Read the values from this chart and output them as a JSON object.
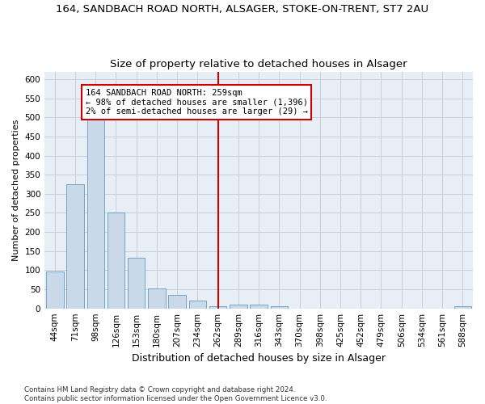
{
  "title": "164, SANDBACH ROAD NORTH, ALSAGER, STOKE-ON-TRENT, ST7 2AU",
  "subtitle": "Size of property relative to detached houses in Alsager",
  "xlabel": "Distribution of detached houses by size in Alsager",
  "ylabel": "Number of detached properties",
  "categories": [
    "44sqm",
    "71sqm",
    "98sqm",
    "126sqm",
    "153sqm",
    "180sqm",
    "207sqm",
    "234sqm",
    "262sqm",
    "289sqm",
    "316sqm",
    "343sqm",
    "370sqm",
    "398sqm",
    "425sqm",
    "452sqm",
    "479sqm",
    "506sqm",
    "534sqm",
    "561sqm",
    "588sqm"
  ],
  "values": [
    97,
    325,
    495,
    250,
    132,
    52,
    35,
    20,
    5,
    10,
    10,
    5,
    0,
    0,
    0,
    0,
    0,
    0,
    0,
    0,
    5
  ],
  "bar_color": "#c9d9ea",
  "bar_edge_color": "#6699bb",
  "highlight_index": 8,
  "highlight_color": "#cc0000",
  "annotation_line1": "164 SANDBACH ROAD NORTH: 259sqm",
  "annotation_line2": "← 98% of detached houses are smaller (1,396)",
  "annotation_line3": "2% of semi-detached houses are larger (29) →",
  "ylim": [
    0,
    620
  ],
  "yticks": [
    0,
    50,
    100,
    150,
    200,
    250,
    300,
    350,
    400,
    450,
    500,
    550,
    600
  ],
  "footer_line1": "Contains HM Land Registry data © Crown copyright and database right 2024.",
  "footer_line2": "Contains public sector information licensed under the Open Government Licence v3.0.",
  "background_color": "#ffffff",
  "plot_bg_color": "#e8eef5",
  "grid_color": "#c8cfdc",
  "title_fontsize": 9.5,
  "subtitle_fontsize": 9.5,
  "ylabel_fontsize": 8,
  "xlabel_fontsize": 9,
  "tick_fontsize": 7.5,
  "annot_fontsize": 7.5,
  "footer_fontsize": 6.2
}
